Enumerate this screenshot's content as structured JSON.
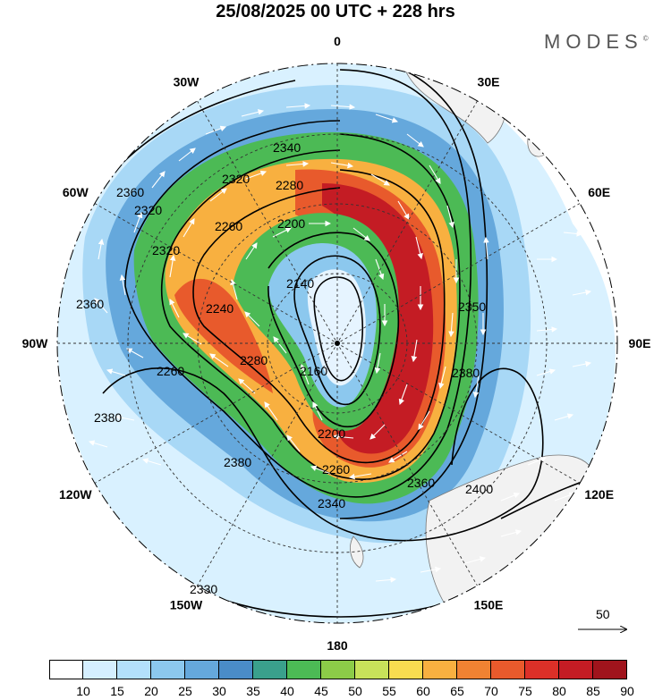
{
  "title": "25/08/2025  00 UTC  + 228 hrs",
  "brand": "MODES",
  "brand_mark": "©",
  "longitude_labels": [
    {
      "text": "0",
      "deg": 0
    },
    {
      "text": "30E",
      "deg": 30
    },
    {
      "text": "60E",
      "deg": 60
    },
    {
      "text": "90E",
      "deg": 90
    },
    {
      "text": "120E",
      "deg": 120
    },
    {
      "text": "150E",
      "deg": 150
    },
    {
      "text": "180",
      "deg": 180
    },
    {
      "text": "150W",
      "deg": 210
    },
    {
      "text": "120W",
      "deg": 240
    },
    {
      "text": "90W",
      "deg": 270
    },
    {
      "text": "60W",
      "deg": 300
    },
    {
      "text": "30W",
      "deg": 330
    }
  ],
  "contour_labels": [
    "2340",
    "2320",
    "2280",
    "2260",
    "2200",
    "2360",
    "2320",
    "2140",
    "2360",
    "2350",
    "2380",
    "2260",
    "2240",
    "2280",
    "2160",
    "2200",
    "2260",
    "2340",
    "2360",
    "2400",
    "2380",
    "2380",
    "2330",
    "2320"
  ],
  "vector_reference": "50",
  "colorbar": {
    "colors": [
      "#ffffff",
      "#d5efff",
      "#b3e0fb",
      "#8cc8ee",
      "#65a8dc",
      "#4a8cc8",
      "#3aa08c",
      "#4cba55",
      "#8ccc48",
      "#c8e25a",
      "#f8dc50",
      "#f8b040",
      "#f08232",
      "#e85a2c",
      "#dc3028",
      "#c41c24",
      "#a0141c"
    ],
    "ticks": [
      "10",
      "15",
      "20",
      "25",
      "30",
      "35",
      "40",
      "45",
      "50",
      "55",
      "60",
      "65",
      "70",
      "75",
      "80",
      "85",
      "90"
    ]
  }
}
